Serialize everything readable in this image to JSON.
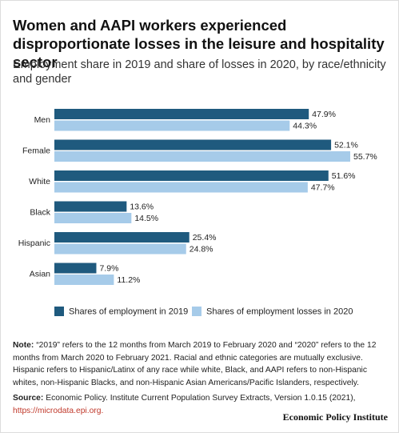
{
  "chart_data": {
    "type": "bar",
    "orientation": "horizontal",
    "title": "Women and AAPI workers experienced disproportionate losses in the leisure and hospitality sector",
    "subtitle": "Employment share in 2019 and share of losses in 2020, by race/ethnicity and gender",
    "categories": [
      "Men",
      "Female",
      "White",
      "Black",
      "Hispanic",
      "Asian"
    ],
    "series": [
      {
        "name": "Shares of employment in 2019",
        "color": "#1f5a7e",
        "values": [
          47.9,
          52.1,
          51.6,
          13.6,
          25.4,
          7.9
        ],
        "value_labels": [
          "47.9%",
          "52.1%",
          "51.6%",
          "13.6%",
          "25.4%",
          "7.9%"
        ]
      },
      {
        "name": "Shares of employment losses in 2020",
        "color": "#a6cbe9",
        "values": [
          44.3,
          55.7,
          47.7,
          14.5,
          24.8,
          11.2
        ],
        "value_labels": [
          "44.3%",
          "55.7%",
          "47.7%",
          "14.5%",
          "24.8%",
          "11.2%"
        ]
      }
    ],
    "legend": "bottom"
  },
  "notes": {
    "note_label": "Note:",
    "note": "“2019” refers to the 12 months from March 2019 to February 2020 and “2020” refers to the 12 months from March 2020 to February 2021. Racial and ethnic categories are mutually exclusive. Hispanic refers to Hispanic/Latinx of any race while white, Black, and AAPI refers to non-Hispanic whites, non-Hispanic Blacks, and non-Hispanic Asian Americans/Pacific Islanders, respectively.",
    "source_label": "Source:",
    "source": "Economic Policy. Institute Current Population Survey Extracts, Version 1.0.15 (2021),",
    "source_link": "https://microdata.epi.org."
  },
  "footer": "Economic Policy Institute"
}
